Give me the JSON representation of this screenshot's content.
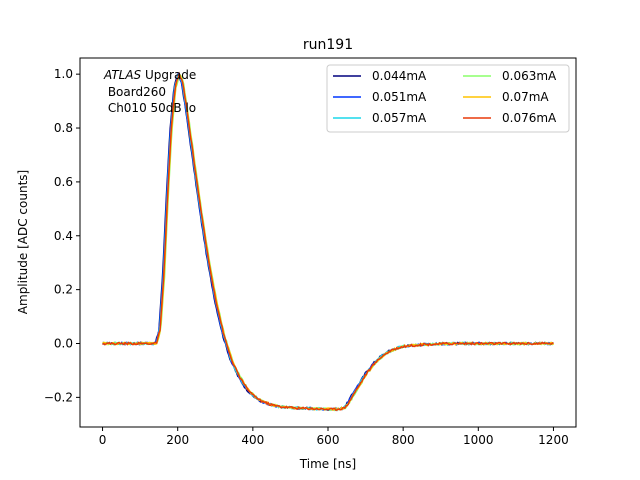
{
  "chart_data": {
    "type": "line",
    "title": "run191",
    "xlabel": "Time [ns]",
    "ylabel": "Amplitude [ADC counts]",
    "xlim": [
      -60,
      1260
    ],
    "ylim": [
      -0.31,
      1.06
    ],
    "xticks": [
      0,
      200,
      400,
      600,
      800,
      1000,
      1200
    ],
    "xtick_labels": [
      "0",
      "200",
      "400",
      "600",
      "800",
      "1000",
      "1200"
    ],
    "yticks": [
      -0.2,
      0.0,
      0.2,
      0.4,
      0.6,
      0.8,
      1.0
    ],
    "ytick_labels": [
      "−0.2",
      "0.0",
      "0.2",
      "0.4",
      "0.6",
      "0.8",
      "1.0"
    ],
    "grid": false,
    "legend_position": "top-right",
    "annotation": {
      "italic": "ATLAS",
      "rest": " Upgrade",
      "line2": " Board260",
      "line3": " Ch010 50dB lo"
    },
    "series": [
      {
        "name": "0.044mA",
        "color": "#00007f",
        "x_shift": 0
      },
      {
        "name": "0.051mA",
        "color": "#0036ff",
        "x_shift": 1
      },
      {
        "name": "0.057mA",
        "color": "#1bd7ea",
        "x_shift": 2
      },
      {
        "name": "0.063mA",
        "color": "#8aff6a",
        "x_shift": 5
      },
      {
        "name": "0.07mA",
        "color": "#ffc400",
        "x_shift": 4
      },
      {
        "name": "0.076mA",
        "color": "#e83a0a",
        "x_shift": 3
      }
    ],
    "pulse_shape": {
      "x": [
        0,
        60,
        120,
        140,
        150,
        160,
        170,
        180,
        190,
        200,
        210,
        220,
        230,
        240,
        250,
        260,
        280,
        300,
        320,
        340,
        360,
        380,
        400,
        420,
        440,
        460,
        480,
        500,
        520,
        540,
        560,
        580,
        600,
        620,
        640,
        650,
        660,
        680,
        700,
        720,
        740,
        760,
        780,
        800,
        850,
        900,
        950,
        1000,
        1100,
        1200
      ],
      "y": [
        0.0,
        0.0,
        0.0,
        0.0,
        0.05,
        0.25,
        0.55,
        0.8,
        0.95,
        1.0,
        0.97,
        0.88,
        0.78,
        0.68,
        0.58,
        0.48,
        0.3,
        0.15,
        0.03,
        -0.06,
        -0.12,
        -0.165,
        -0.195,
        -0.213,
        -0.225,
        -0.232,
        -0.236,
        -0.238,
        -0.24,
        -0.241,
        -0.242,
        -0.243,
        -0.244,
        -0.244,
        -0.24,
        -0.225,
        -0.2,
        -0.155,
        -0.11,
        -0.075,
        -0.048,
        -0.03,
        -0.018,
        -0.01,
        -0.004,
        -0.001,
        0.0,
        0.0,
        0.0,
        0.0
      ]
    }
  }
}
